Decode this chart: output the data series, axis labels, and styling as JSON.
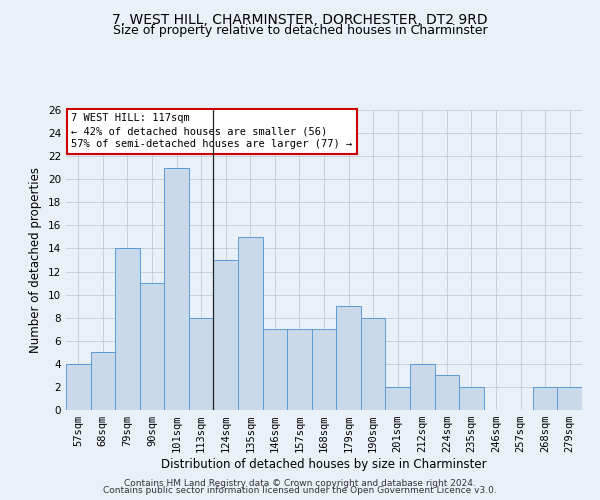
{
  "title": "7, WEST HILL, CHARMINSTER, DORCHESTER, DT2 9RD",
  "subtitle": "Size of property relative to detached houses in Charminster",
  "xlabel": "Distribution of detached houses by size in Charminster",
  "ylabel": "Number of detached properties",
  "categories": [
    "57sqm",
    "68sqm",
    "79sqm",
    "90sqm",
    "101sqm",
    "113sqm",
    "124sqm",
    "135sqm",
    "146sqm",
    "157sqm",
    "168sqm",
    "179sqm",
    "190sqm",
    "201sqm",
    "212sqm",
    "224sqm",
    "235sqm",
    "246sqm",
    "257sqm",
    "268sqm",
    "279sqm"
  ],
  "values": [
    4,
    5,
    14,
    11,
    21,
    8,
    13,
    15,
    7,
    7,
    7,
    9,
    8,
    2,
    4,
    3,
    2,
    0,
    0,
    2,
    2
  ],
  "bar_color": "#c9d9ea",
  "bar_edge_color": "#5b9bd5",
  "bar_width": 1.0,
  "ylim": [
    0,
    26
  ],
  "yticks": [
    0,
    2,
    4,
    6,
    8,
    10,
    12,
    14,
    16,
    18,
    20,
    22,
    24,
    26
  ],
  "property_label": "7 WEST HILL: 117sqm",
  "annotation_line1": "← 42% of detached houses are smaller (56)",
  "annotation_line2": "57% of semi-detached houses are larger (77) →",
  "annotation_box_color": "#ffffff",
  "annotation_box_edge_color": "#cc0000",
  "vline_position": 5.5,
  "background_color": "#eaf0f8",
  "footer_line1": "Contains HM Land Registry data © Crown copyright and database right 2024.",
  "footer_line2": "Contains public sector information licensed under the Open Government Licence v3.0.",
  "title_fontsize": 10,
  "subtitle_fontsize": 9,
  "xlabel_fontsize": 8.5,
  "ylabel_fontsize": 8.5,
  "tick_fontsize": 7.5,
  "annotation_fontsize": 7.5,
  "footer_fontsize": 6.5
}
